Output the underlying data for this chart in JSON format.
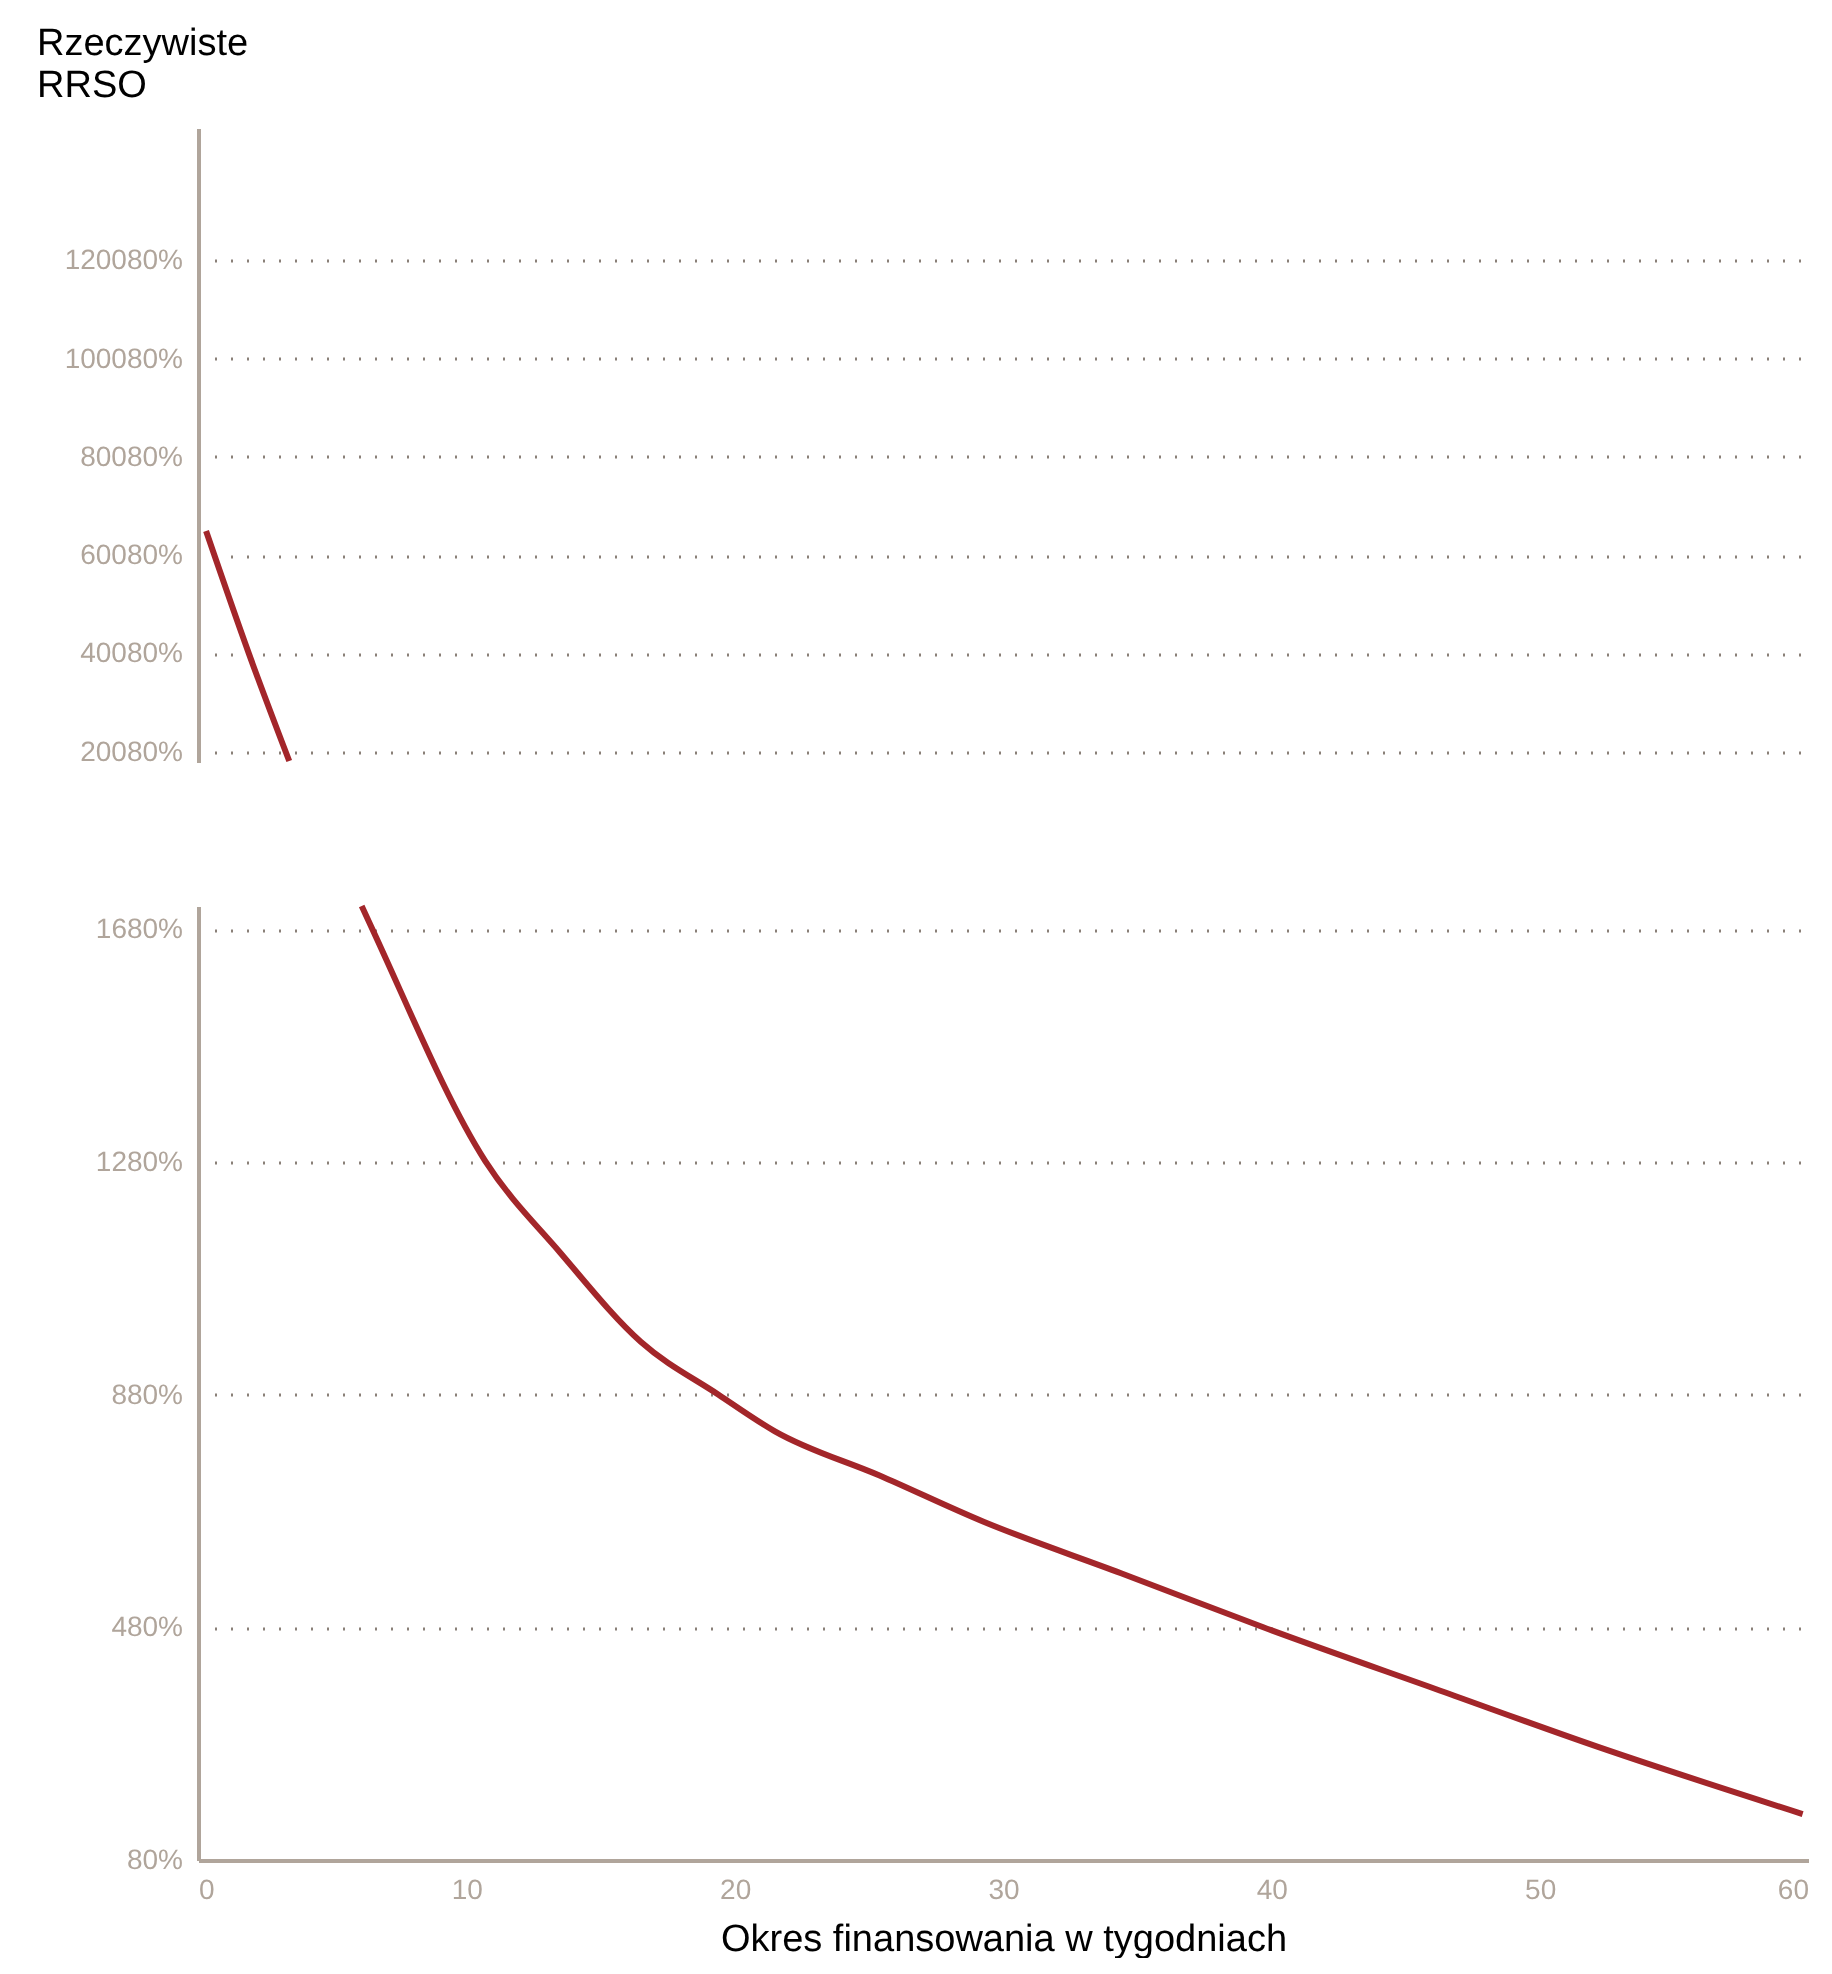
{
  "chart_data": [
    {
      "type": "line",
      "ylabel": "Rzeczywiste RRSO",
      "x": [
        0.3,
        1.9,
        3.4
      ],
      "series": [
        {
          "color": "#a3262a",
          "values": [
            65000,
            40000,
            18200
          ]
        }
      ],
      "xlim": [
        0,
        60
      ],
      "ylim": [
        18000,
        147000
      ],
      "yticks": [
        {
          "value": 20080,
          "label": "20080%"
        },
        {
          "value": 40080,
          "label": "40080%"
        },
        {
          "value": 60080,
          "label": "60080%"
        },
        {
          "value": 80080,
          "label": "80080%"
        },
        {
          "value": 100080,
          "label": "100080%"
        },
        {
          "value": 120080,
          "label": "120080%"
        }
      ],
      "tick_labels": "y",
      "grid": "y",
      "line_style": "solid",
      "marker": "none"
    },
    {
      "type": "line",
      "xlabel": "Okres finansowania w tygodniach",
      "x": [
        6.1,
        6.5,
        10.7,
        13.5,
        16.5,
        19.4,
        21.5,
        25.4,
        29.3,
        34.4,
        39.7,
        46.3,
        52.2,
        59.8
      ],
      "series": [
        {
          "color": "#a3262a",
          "values": [
            1720,
            1680,
            1282,
            1124,
            971,
            880,
            817,
            741,
            661,
            573,
            480,
            371,
            274,
            159
          ]
        }
      ],
      "xlim": [
        0,
        60
      ],
      "xticks": [
        0,
        10,
        20,
        30,
        40,
        50,
        60
      ],
      "ylim": [
        80,
        1720
      ],
      "yticks": [
        {
          "value": 80,
          "label": "80%"
        },
        {
          "value": 480,
          "label": "480%"
        },
        {
          "value": 880,
          "label": "880%"
        },
        {
          "value": 1280,
          "label": "1280%"
        },
        {
          "value": 1680,
          "label": "1680%"
        }
      ],
      "grid": "y",
      "line_style": "solid",
      "marker": "none"
    }
  ]
}
